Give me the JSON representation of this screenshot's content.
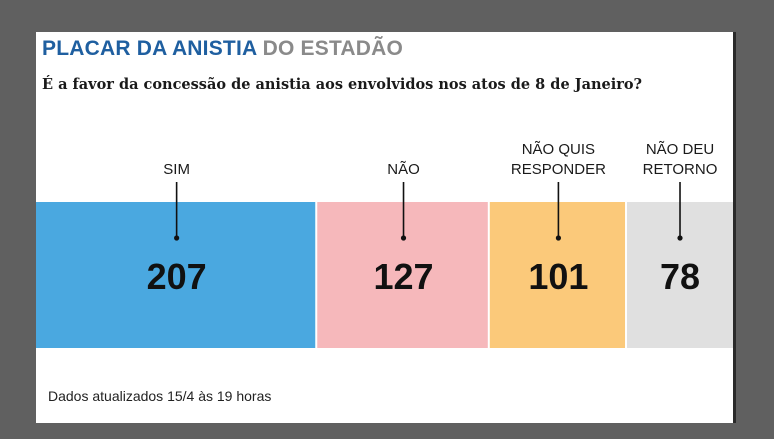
{
  "title": {
    "part1": "PLACAR DA ANISTIA",
    "part2": "DO ESTADÃO"
  },
  "question": "É a favor da concessão de anistia aos envolvidos nos atos de 8 de Janeiro?",
  "footnote": "Dados atualizados 15/4 às 19 horas",
  "colors": {
    "title_accent": "#1f5fa0",
    "title_muted": "#8a8a8a",
    "background": "#606060"
  },
  "chart_data": {
    "type": "bar",
    "orientation": "horizontal-stacked",
    "categories": [
      [
        "SIM"
      ],
      [
        "NÃO"
      ],
      [
        "NÃO QUIS",
        "RESPONDER"
      ],
      [
        "NÃO DEU",
        "RETORNO"
      ]
    ],
    "values": [
      207,
      127,
      101,
      78
    ],
    "colors": [
      "#4aa8e0",
      "#f6b8bb",
      "#fbc97a",
      "#e0e0e0"
    ],
    "value_labels": [
      "207",
      "127",
      "101",
      "78"
    ]
  }
}
